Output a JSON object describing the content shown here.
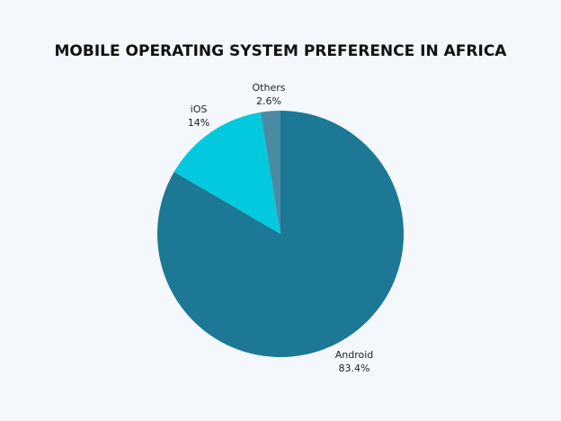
{
  "chart_data": {
    "type": "pie",
    "title": "MOBILE OPERATING SYSTEM PREFERENCE IN AFRICA",
    "start_angle_deg": 0,
    "direction": "clockwise",
    "slices": [
      {
        "label": "Android",
        "value": 83.4,
        "value_label": "83.4%",
        "color": "#1c7894"
      },
      {
        "label": "iOS",
        "value": 14,
        "value_label": "14%",
        "color": "#03c9de"
      },
      {
        "label": "Others",
        "value": 2.6,
        "value_label": "2.6%",
        "color": "#4a8aa3"
      }
    ]
  }
}
